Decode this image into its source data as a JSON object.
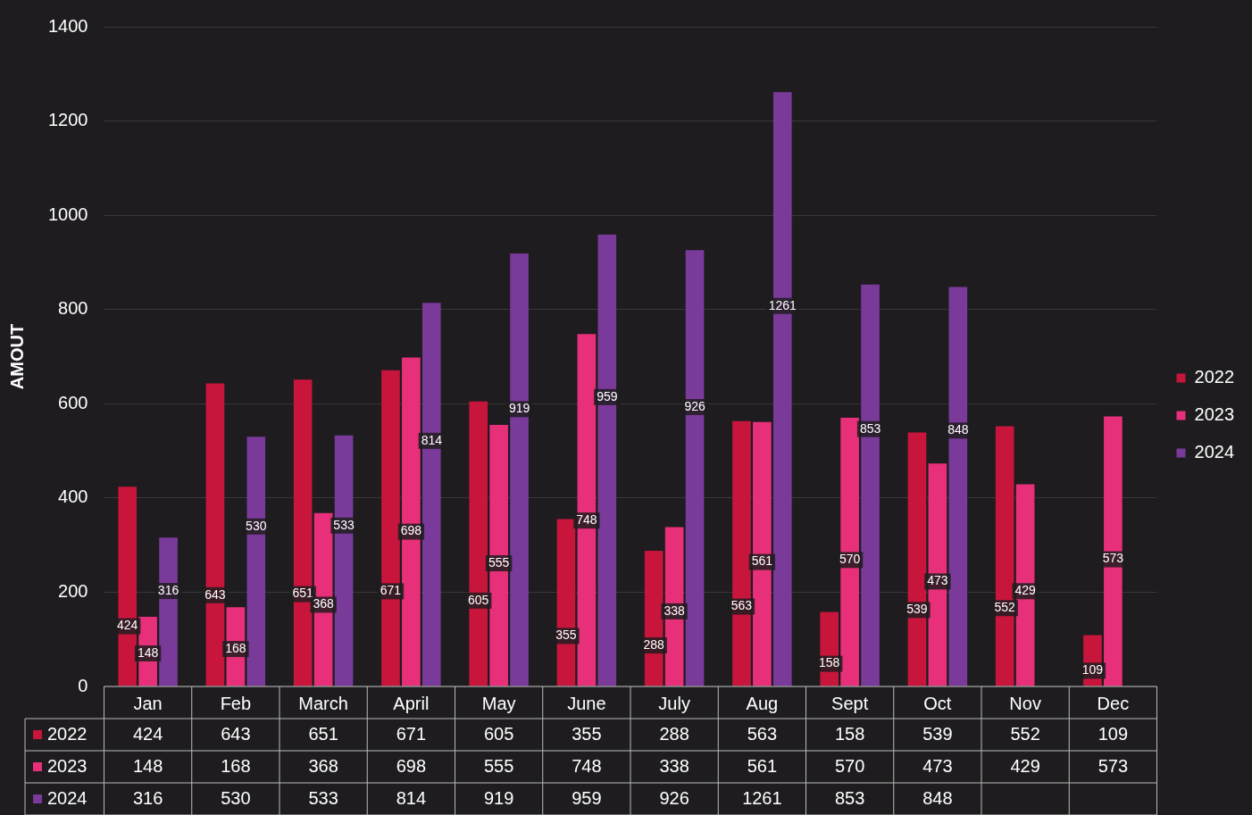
{
  "chart_data": {
    "type": "bar",
    "ylabel": "AMOUT",
    "categories": [
      "Jan",
      "Feb",
      "March",
      "April",
      "May",
      "June",
      "July",
      "Aug",
      "Sept",
      "Oct",
      "Nov",
      "Dec"
    ],
    "series": [
      {
        "name": "2022",
        "color": "#c8153c",
        "values": [
          424,
          643,
          651,
          671,
          605,
          355,
          288,
          563,
          158,
          539,
          552,
          109
        ]
      },
      {
        "name": "2023",
        "color": "#e8307a",
        "values": [
          148,
          168,
          368,
          698,
          555,
          748,
          338,
          561,
          570,
          473,
          429,
          573
        ]
      },
      {
        "name": "2024",
        "color": "#7a3a9a",
        "values": [
          316,
          530,
          533,
          814,
          919,
          959,
          926,
          1261,
          853,
          848,
          null,
          null
        ]
      }
    ],
    "annotations": [
      "424",
      "148",
      "316",
      "643",
      "168",
      "530",
      "651",
      "368",
      "533",
      "671",
      "698",
      "814",
      "605",
      "555",
      "919",
      "355",
      "748",
      "959",
      "288",
      "338",
      "926",
      "563",
      "561",
      "1261",
      "158",
      "570",
      "853",
      "539",
      "473",
      "848",
      "552",
      "429",
      "109",
      "573"
    ],
    "ylim": [
      0,
      1400
    ],
    "yticks": [
      0,
      200,
      400,
      600,
      800,
      1000,
      1200,
      1400
    ],
    "grid": "y",
    "legend": "right",
    "data_labels": true
  }
}
